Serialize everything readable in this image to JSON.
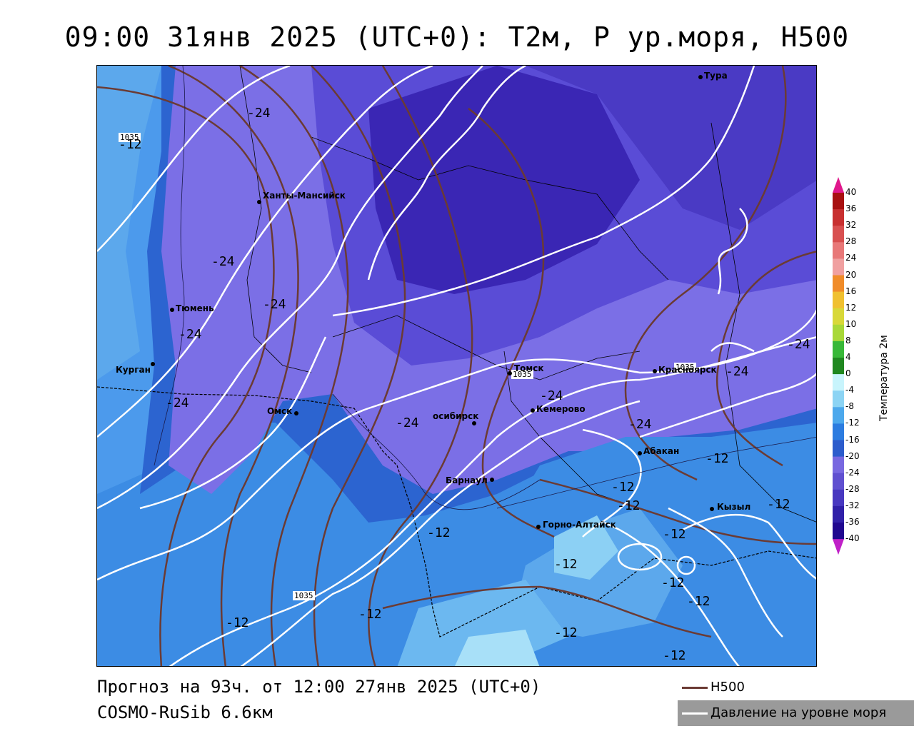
{
  "title": "09:00 31янв 2025 (UTC+0): Т2м, Р ур.моря, Н500",
  "footer": {
    "forecast": "Прогноз на 93ч. от 12:00 27янв 2025 (UTC+0)",
    "model": "COSMO-RuSib 6.6км"
  },
  "legend": {
    "h500": "Н500",
    "pressure": "Давление на уровне моря"
  },
  "colorbar": {
    "title": "Температура 2м",
    "ticks": [
      "40",
      "36",
      "32",
      "28",
      "24",
      "20",
      "16",
      "12",
      "10",
      "8",
      "4",
      "0",
      "-4",
      "-8",
      "-12",
      "-16",
      "-20",
      "-24",
      "-28",
      "-32",
      "-36",
      "-40"
    ],
    "colors": [
      "#8b0000",
      "#a81010",
      "#c83030",
      "#d85050",
      "#e87878",
      "#f0a0a0",
      "#f08c2a",
      "#f0c030",
      "#d8d838",
      "#a8d838",
      "#38b838",
      "#208820",
      "#c8f4fc",
      "#8cd4f4",
      "#4ca8ec",
      "#2c7ce0",
      "#2c5ccc",
      "#7868e0",
      "#6050d0",
      "#4838c0",
      "#3020a8",
      "#200890"
    ],
    "top_color": "#e0188c",
    "bottom_color": "#c020c8"
  },
  "cities": [
    {
      "name": "Тура"
    },
    {
      "name": "Ханты-Мансийск"
    },
    {
      "name": "Тюмень"
    },
    {
      "name": "Курган"
    },
    {
      "name": "Омск"
    },
    {
      "name": "Томск"
    },
    {
      "name": "Кемерово"
    },
    {
      "name": "Красноярск"
    },
    {
      "name": "осибирск"
    },
    {
      "name": "Барнаул"
    },
    {
      "name": "Абакан"
    },
    {
      "name": "Кызыл"
    },
    {
      "name": "Горно-Алтайск"
    }
  ],
  "isotherm_labels": [
    "-24",
    "-24",
    "-24",
    "-24",
    "-24",
    "-24",
    "-24",
    "-24",
    "-24",
    "-24",
    "-12",
    "-12",
    "-12",
    "-12",
    "-12",
    "-12",
    "-12",
    "-12",
    "-12",
    "-12",
    "-12",
    "-12",
    "-12"
  ],
  "pressure_labels": [
    "1035",
    "1035",
    "1035"
  ]
}
